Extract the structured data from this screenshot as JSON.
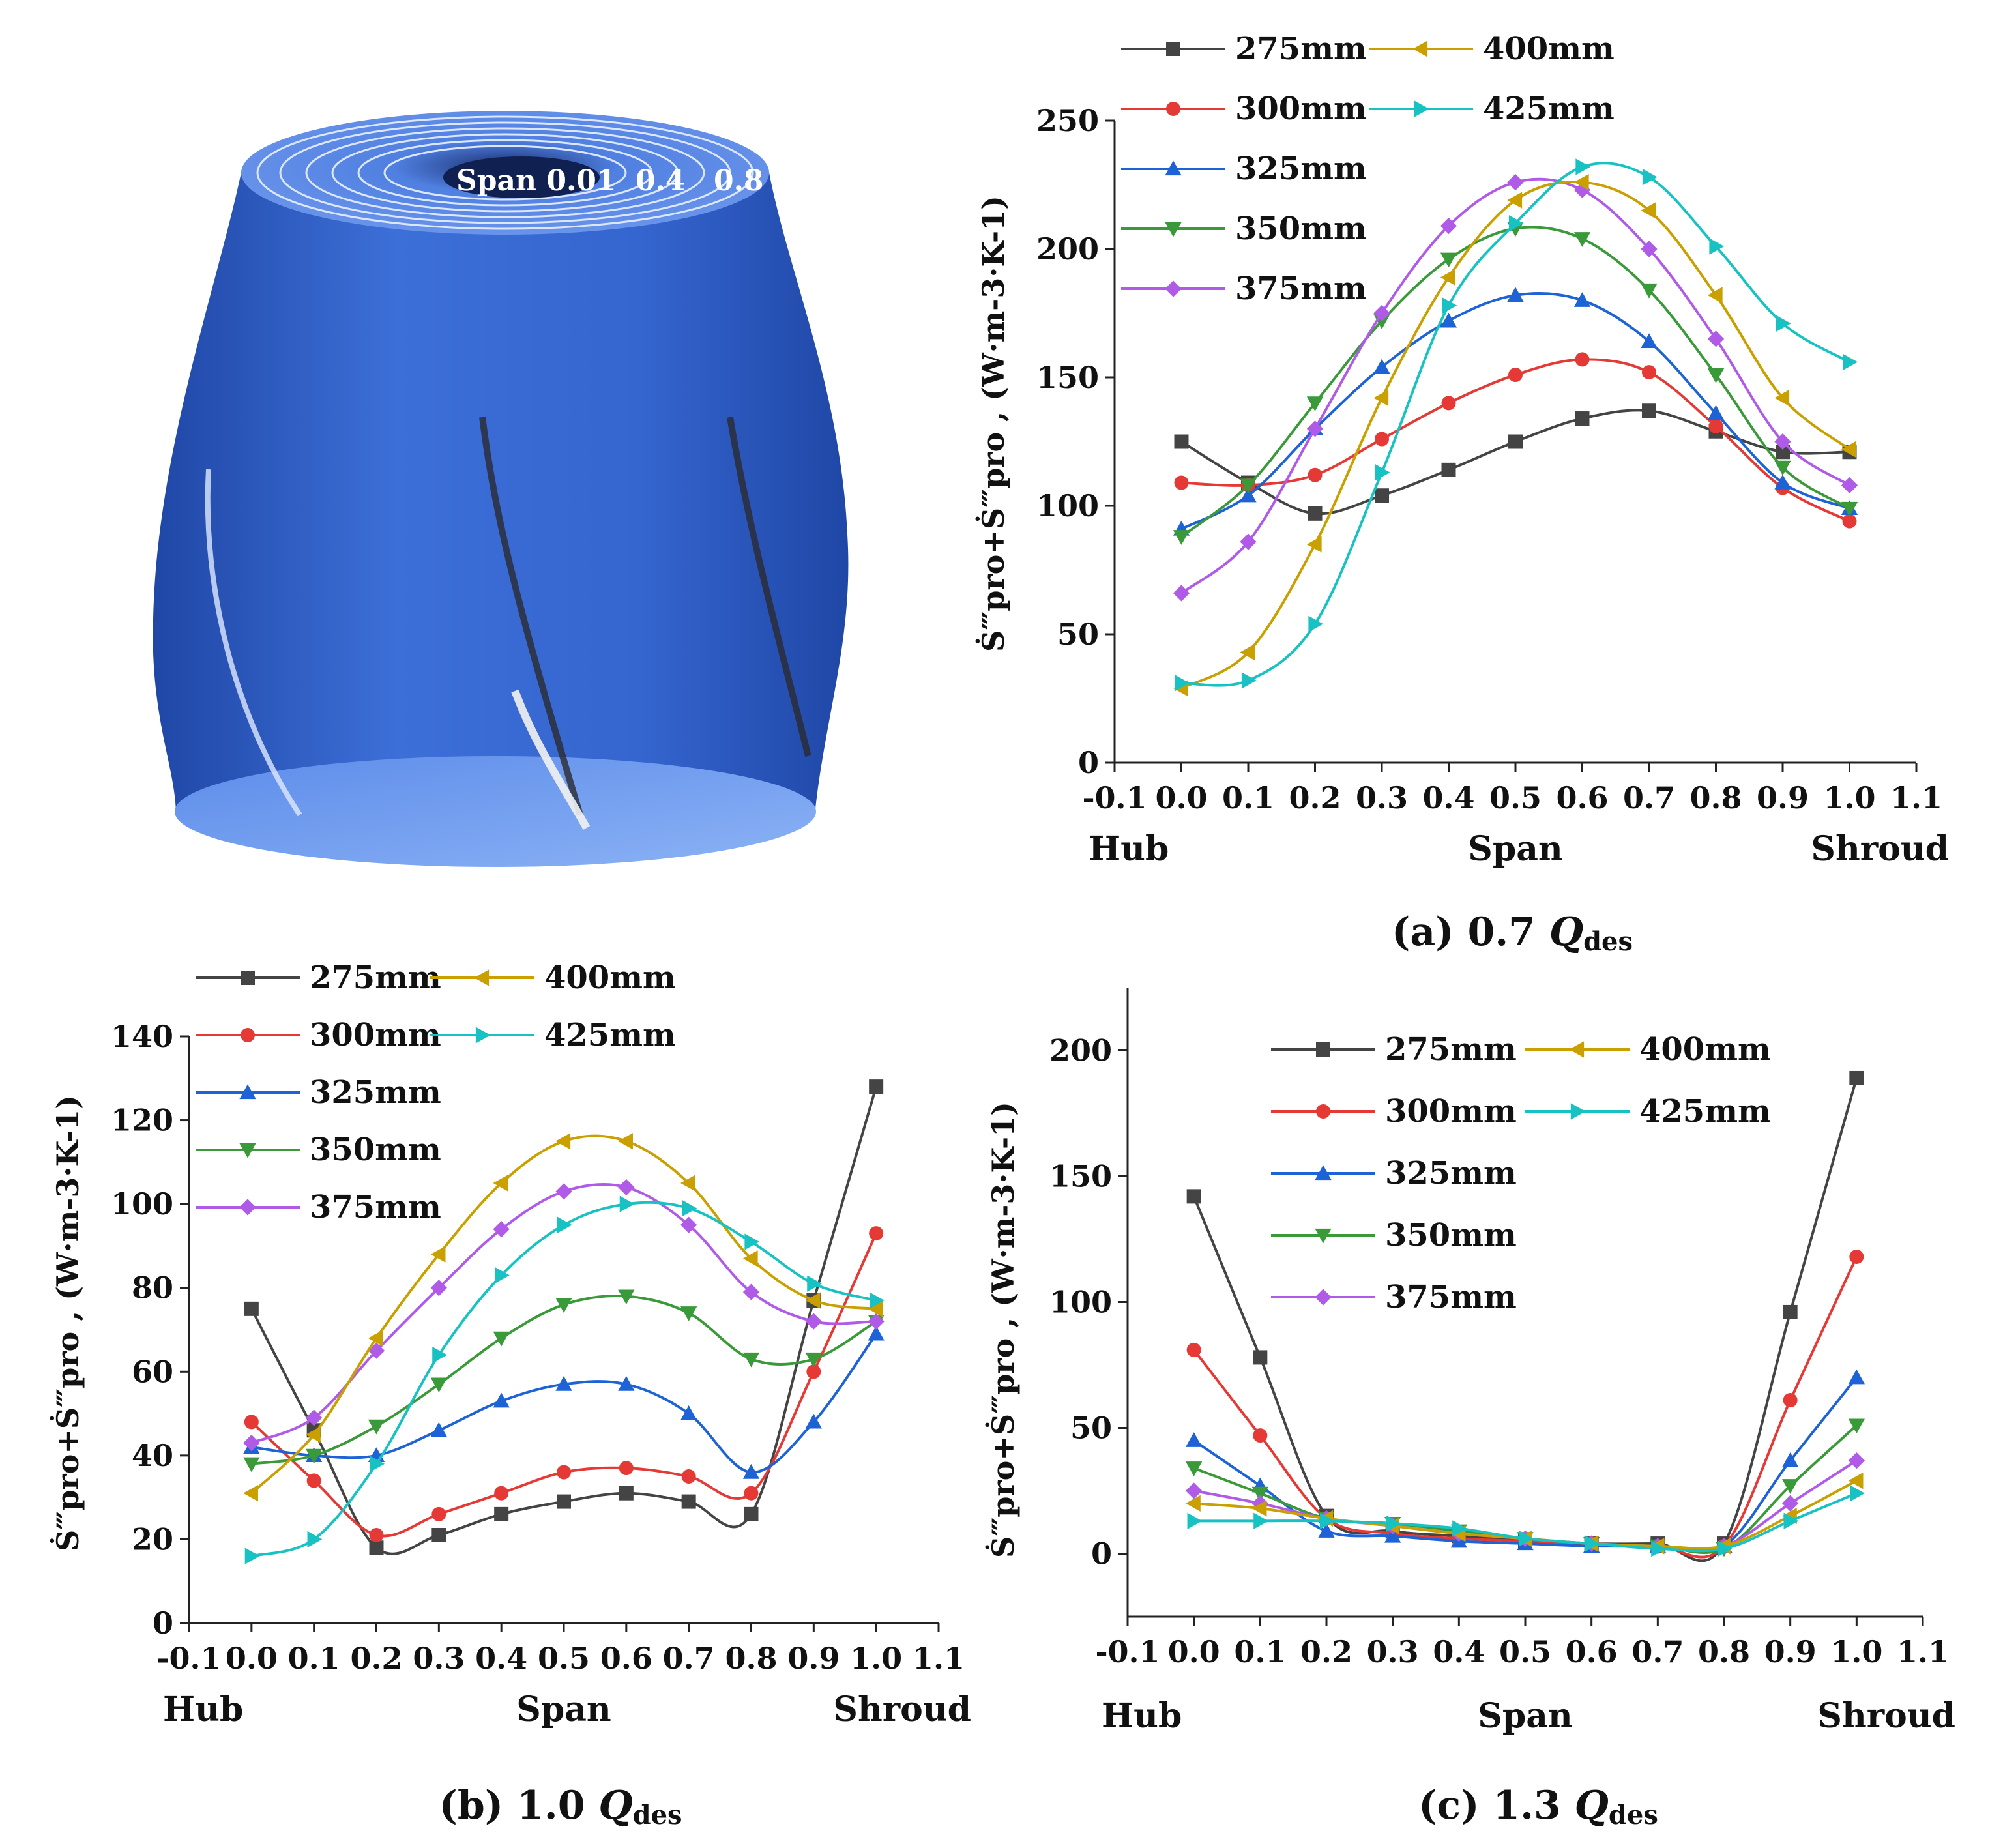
{
  "illustration": {
    "span_labels": [
      "Span 0.01",
      "0.4",
      "0.8"
    ],
    "colors": {
      "body": "#3d6fd8",
      "dark": "#1f47a6",
      "light": "#7aa6f2",
      "top": "#4f7fe0"
    }
  },
  "legend_names": [
    "275mm",
    "300mm",
    "325mm",
    "350mm",
    "375mm",
    "400mm",
    "425mm"
  ],
  "series_style": [
    {
      "name": "275mm",
      "color": "#444444",
      "marker": "square"
    },
    {
      "name": "300mm",
      "color": "#e53935",
      "marker": "circle"
    },
    {
      "name": "325mm",
      "color": "#1e63d6",
      "marker": "triangle-up"
    },
    {
      "name": "350mm",
      "color": "#3a9a3a",
      "marker": "triangle-down"
    },
    {
      "name": "375mm",
      "color": "#b05be8",
      "marker": "diamond"
    },
    {
      "name": "400mm",
      "color": "#c9a000",
      "marker": "triangle-left"
    },
    {
      "name": "425mm",
      "color": "#19c2c2",
      "marker": "triangle-right"
    }
  ],
  "chart_data": [
    {
      "id": "a",
      "type": "line",
      "caption_prefix": "(a) 0.7 ",
      "caption_q": "Q",
      "caption_sub": "des",
      "xlabel": "Span",
      "x_left_label": "Hub",
      "x_right_label": "Shroud",
      "ylabel": "Ṡ‴pro+Ṡ‴pro , (W·m-3·K-1)",
      "xlim": [
        -0.1,
        1.1
      ],
      "ylim": [
        0,
        250
      ],
      "xticks": [
        "-0.1",
        "0.0",
        "0.1",
        "0.2",
        "0.3",
        "0.4",
        "0.5",
        "0.6",
        "0.7",
        "0.8",
        "0.9",
        "1.0",
        "1.1"
      ],
      "yticks": [
        "0",
        "50",
        "100",
        "150",
        "200",
        "250"
      ],
      "x": [
        0.0,
        0.1,
        0.2,
        0.3,
        0.4,
        0.5,
        0.6,
        0.7,
        0.8,
        0.9,
        1.0
      ],
      "series": [
        {
          "name": "275mm",
          "values": [
            125,
            109,
            97,
            104,
            114,
            125,
            134,
            137,
            129,
            121,
            121
          ]
        },
        {
          "name": "300mm",
          "values": [
            109,
            108,
            112,
            126,
            140,
            151,
            157,
            152,
            131,
            107,
            94
          ]
        },
        {
          "name": "325mm",
          "values": [
            91,
            104,
            130,
            154,
            172,
            182,
            180,
            164,
            136,
            109,
            99
          ]
        },
        {
          "name": "350mm",
          "values": [
            88,
            108,
            140,
            172,
            196,
            208,
            204,
            184,
            151,
            115,
            99
          ]
        },
        {
          "name": "375mm",
          "values": [
            66,
            86,
            130,
            175,
            209,
            226,
            223,
            200,
            165,
            125,
            108
          ]
        },
        {
          "name": "400mm",
          "values": [
            29,
            43,
            85,
            142,
            189,
            219,
            226,
            215,
            182,
            142,
            122
          ]
        },
        {
          "name": "425mm",
          "values": [
            31,
            32,
            54,
            113,
            178,
            210,
            232,
            228,
            201,
            171,
            156
          ]
        }
      ]
    },
    {
      "id": "b",
      "type": "line",
      "caption_prefix": "(b) 1.0 ",
      "caption_q": "Q",
      "caption_sub": "des",
      "xlabel": "Span",
      "x_left_label": "Hub",
      "x_right_label": "Shroud",
      "ylabel": "Ṡ‴pro+Ṡ‴pro , (W·m-3·K-1)",
      "xlim": [
        -0.1,
        1.1
      ],
      "ylim": [
        0,
        140
      ],
      "xticks": [
        "-0.1",
        "0.0",
        "0.1",
        "0.2",
        "0.3",
        "0.4",
        "0.5",
        "0.6",
        "0.7",
        "0.8",
        "0.9",
        "1.0",
        "1.1"
      ],
      "yticks": [
        "0",
        "20",
        "40",
        "60",
        "80",
        "100",
        "120",
        "140"
      ],
      "x": [
        0.0,
        0.1,
        0.2,
        0.3,
        0.4,
        0.5,
        0.6,
        0.7,
        0.8,
        0.9,
        1.0
      ],
      "series": [
        {
          "name": "275mm",
          "values": [
            75,
            46,
            18,
            21,
            26,
            29,
            31,
            29,
            26,
            77,
            128
          ]
        },
        {
          "name": "300mm",
          "values": [
            48,
            34,
            21,
            26,
            31,
            36,
            37,
            35,
            31,
            60,
            93
          ]
        },
        {
          "name": "325mm",
          "values": [
            42,
            40,
            40,
            46,
            53,
            57,
            57,
            50,
            36,
            48,
            69
          ]
        },
        {
          "name": "350mm",
          "values": [
            38,
            40,
            47,
            57,
            68,
            76,
            78,
            74,
            63,
            63,
            72
          ]
        },
        {
          "name": "375mm",
          "values": [
            43,
            49,
            65,
            80,
            94,
            103,
            104,
            95,
            79,
            72,
            72
          ]
        },
        {
          "name": "400mm",
          "values": [
            31,
            45,
            68,
            88,
            105,
            115,
            115,
            105,
            87,
            77,
            75
          ]
        },
        {
          "name": "425mm",
          "values": [
            16,
            20,
            38,
            64,
            83,
            95,
            100,
            99,
            91,
            81,
            77
          ]
        }
      ]
    },
    {
      "id": "c",
      "type": "line",
      "caption_prefix": "(c) 1.3 ",
      "caption_q": "Q",
      "caption_sub": "des",
      "xlabel": "Span",
      "x_left_label": "Hub",
      "x_right_label": "Shroud",
      "ylabel": "Ṡ‴pro+Ṡ‴pro , (W·m-3·K-1)",
      "xlim": [
        -0.1,
        1.1
      ],
      "ylim": [
        -25,
        225
      ],
      "xticks": [
        "-0.1",
        "0.0",
        "0.1",
        "0.2",
        "0.3",
        "0.4",
        "0.5",
        "0.6",
        "0.7",
        "0.8",
        "0.9",
        "1.0",
        "1.1"
      ],
      "yticks": [
        "0",
        "50",
        "100",
        "150",
        "200"
      ],
      "x": [
        0.0,
        0.1,
        0.2,
        0.3,
        0.4,
        0.5,
        0.6,
        0.7,
        0.8,
        0.9,
        1.0
      ],
      "series": [
        {
          "name": "275mm",
          "values": [
            142,
            78,
            15,
            9,
            7,
            5,
            4,
            4,
            4,
            96,
            189
          ]
        },
        {
          "name": "300mm",
          "values": [
            81,
            47,
            14,
            8,
            6,
            5,
            4,
            3,
            3,
            61,
            118
          ]
        },
        {
          "name": "325mm",
          "values": [
            45,
            27,
            9,
            7,
            5,
            4,
            3,
            3,
            3,
            37,
            70
          ]
        },
        {
          "name": "350mm",
          "values": [
            34,
            24,
            14,
            12,
            9,
            6,
            4,
            3,
            2,
            27,
            51
          ]
        },
        {
          "name": "375mm",
          "values": [
            25,
            20,
            14,
            11,
            8,
            6,
            4,
            3,
            3,
            20,
            37
          ]
        },
        {
          "name": "400mm",
          "values": [
            20,
            18,
            14,
            11,
            8,
            6,
            4,
            3,
            3,
            15,
            29
          ]
        },
        {
          "name": "425mm",
          "values": [
            13,
            13,
            13,
            12,
            10,
            6,
            4,
            2,
            2,
            13,
            24
          ]
        }
      ]
    }
  ]
}
